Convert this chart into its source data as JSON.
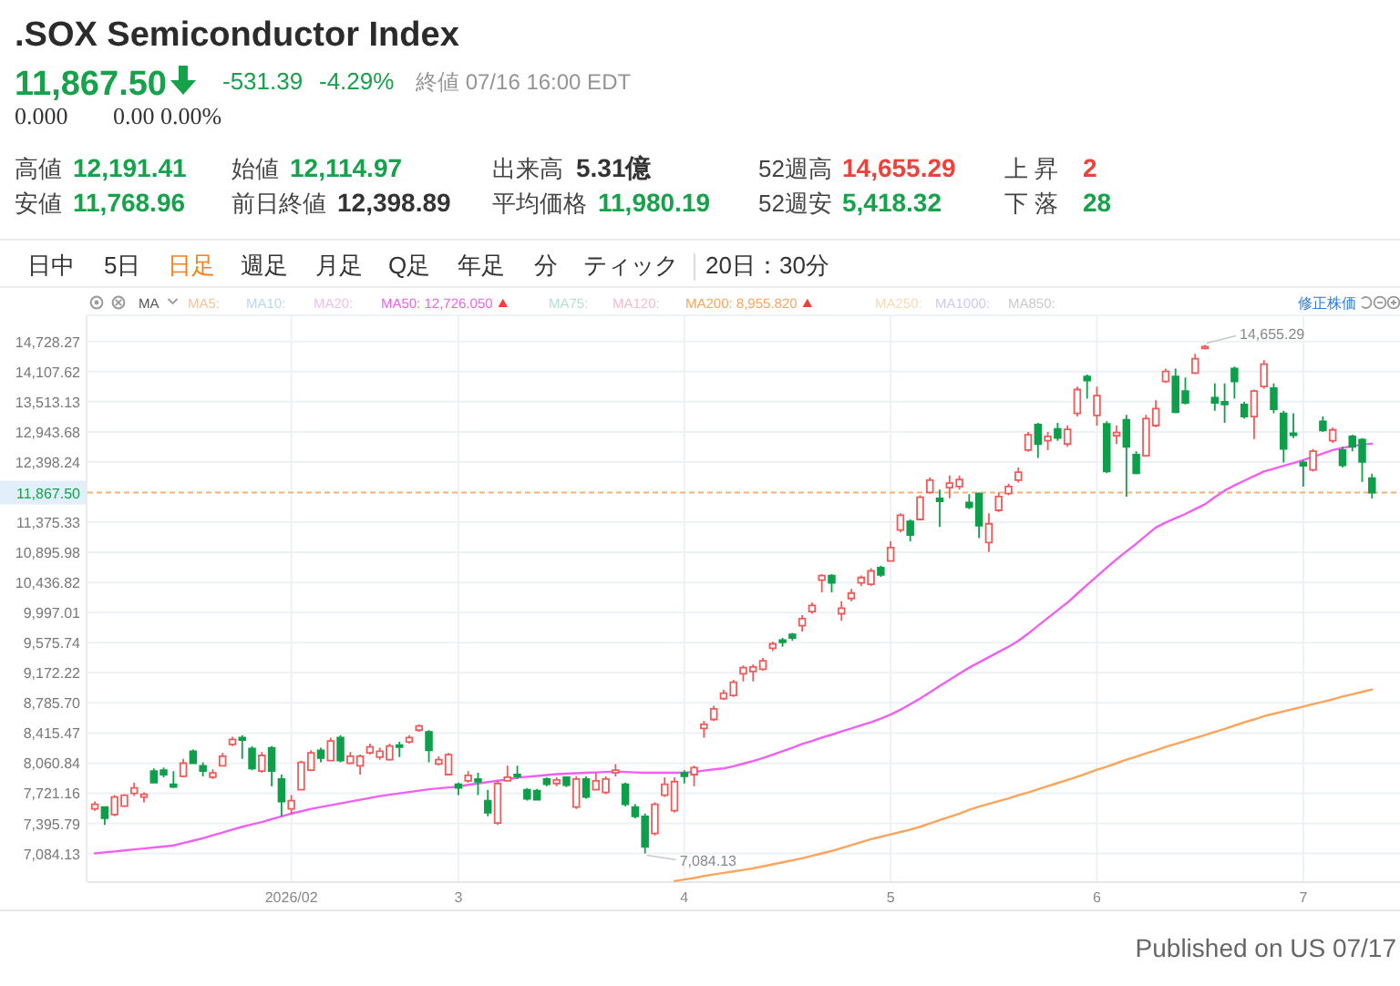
{
  "chart_data": {
    "type": "candlestick",
    "title": ".SOX Semiconductor Index",
    "subtitle": "11,867.50",
    "categories": [
      null,
      null,
      null,
      null,
      null,
      null,
      null,
      null,
      null,
      null,
      null,
      null,
      null,
      null,
      null,
      null,
      null,
      null,
      null,
      null,
      "2026/02",
      null,
      null,
      null,
      null,
      null,
      null,
      null,
      null,
      null,
      null,
      null,
      null,
      null,
      null,
      null,
      null,
      "3",
      null,
      null,
      null,
      null,
      null,
      null,
      null,
      null,
      null,
      null,
      null,
      null,
      null,
      null,
      null,
      null,
      null,
      null,
      null,
      null,
      null,
      null,
      "4",
      null,
      null,
      null,
      null,
      null,
      null,
      null,
      null,
      null,
      null,
      null,
      null,
      null,
      null,
      null,
      null,
      null,
      null,
      null,
      null,
      "5",
      null,
      null,
      null,
      null,
      null,
      null,
      null,
      null,
      null,
      null,
      null,
      null,
      null,
      null,
      null,
      null,
      null,
      null,
      null,
      null,
      "6",
      null,
      null,
      null,
      null,
      null,
      null,
      null,
      null,
      null,
      null,
      null,
      null,
      null,
      null,
      null,
      null,
      null,
      null,
      null,
      null,
      "7",
      null,
      null,
      null,
      null,
      null,
      null,
      null
    ],
    "series": [
      {
        "ohlc": [
          [
            7550,
            7630,
            7530,
            7600
          ],
          [
            7570,
            7580,
            7380,
            7450
          ],
          [
            7490,
            7700,
            7470,
            7680
          ],
          [
            7580,
            7710,
            7570,
            7700
          ],
          [
            7720,
            7840,
            7690,
            7780
          ],
          [
            7680,
            7730,
            7620,
            7710
          ],
          [
            7970,
            8000,
            7830,
            7840
          ],
          [
            7980,
            8010,
            7900,
            7930
          ],
          [
            7820,
            7970,
            7780,
            7790
          ],
          [
            7910,
            8110,
            7900,
            8060
          ],
          [
            8200,
            8220,
            8050,
            8060
          ],
          [
            8030,
            8070,
            7910,
            7970
          ],
          [
            7900,
            7990,
            7880,
            7950
          ],
          [
            8030,
            8180,
            8020,
            8140
          ],
          [
            8280,
            8370,
            8260,
            8340
          ],
          [
            8360,
            8390,
            8110,
            8330
          ],
          [
            8230,
            8260,
            7980,
            8000
          ],
          [
            7970,
            8190,
            7950,
            8150
          ],
          [
            8240,
            8260,
            7800,
            7970
          ],
          [
            7880,
            7930,
            7470,
            7630
          ],
          [
            7550,
            7700,
            7490,
            7640
          ],
          [
            7760,
            8090,
            7750,
            8070
          ],
          [
            7980,
            8210,
            7970,
            8180
          ],
          [
            8210,
            8240,
            8070,
            8120
          ],
          [
            8090,
            8360,
            8080,
            8320
          ],
          [
            8360,
            8390,
            8070,
            8090
          ],
          [
            8060,
            8190,
            8050,
            8140
          ],
          [
            8030,
            8160,
            7930,
            8140
          ],
          [
            8180,
            8290,
            8160,
            8250
          ],
          [
            8130,
            8240,
            8100,
            8200
          ],
          [
            8100,
            8290,
            8090,
            8260
          ],
          [
            8270,
            8310,
            8130,
            8250
          ],
          [
            8310,
            8390,
            8290,
            8360
          ],
          [
            8450,
            8520,
            8430,
            8500
          ],
          [
            8430,
            8450,
            8070,
            8210
          ],
          [
            8050,
            8140,
            8030,
            8100
          ],
          [
            7930,
            8180,
            7920,
            8160
          ],
          [
            7820,
            7840,
            7700,
            7780
          ],
          [
            7860,
            7970,
            7840,
            7920
          ],
          [
            7880,
            7950,
            7700,
            7850
          ],
          [
            7640,
            7760,
            7470,
            7510
          ],
          [
            7400,
            7860,
            7380,
            7830
          ],
          [
            7860,
            8030,
            7850,
            7900
          ],
          [
            7930,
            8030,
            7880,
            7910
          ],
          [
            7760,
            7780,
            7640,
            7660
          ],
          [
            7750,
            7770,
            7640,
            7650
          ],
          [
            7880,
            7900,
            7800,
            7820
          ],
          [
            7830,
            7900,
            7800,
            7870
          ],
          [
            7900,
            7910,
            7790,
            7810
          ],
          [
            7570,
            7910,
            7550,
            7880
          ],
          [
            7880,
            7910,
            7660,
            7680
          ],
          [
            7760,
            7950,
            7750,
            7860
          ],
          [
            7730,
            7910,
            7710,
            7880
          ],
          [
            7950,
            8050,
            7910,
            7980
          ],
          [
            7820,
            7840,
            7580,
            7600
          ],
          [
            7570,
            7600,
            7450,
            7470
          ],
          [
            7470,
            7500,
            7084.13,
            7150
          ],
          [
            7290,
            7620,
            7270,
            7600
          ],
          [
            7700,
            7900,
            7680,
            7820
          ],
          [
            7530,
            7900,
            7510,
            7850
          ],
          [
            7950,
            7980,
            7830,
            7910
          ],
          [
            7930,
            8030,
            7800,
            8010
          ],
          [
            8470,
            8560,
            8360,
            8520
          ],
          [
            8580,
            8750,
            8560,
            8710
          ],
          [
            8840,
            8950,
            8820,
            8910
          ],
          [
            8880,
            9080,
            8860,
            9050
          ],
          [
            9160,
            9270,
            9060,
            9240
          ],
          [
            9190,
            9280,
            9060,
            9250
          ],
          [
            9220,
            9370,
            9200,
            9330
          ],
          [
            9500,
            9590,
            9460,
            9560
          ],
          [
            9610,
            9640,
            9520,
            9580
          ],
          [
            9690,
            9710,
            9600,
            9640
          ],
          [
            9810,
            9960,
            9730,
            9910
          ],
          [
            10010,
            10140,
            9980,
            10100
          ],
          [
            10470,
            10560,
            10290,
            10540
          ],
          [
            10540,
            10560,
            10290,
            10430
          ],
          [
            9980,
            10160,
            9880,
            10060
          ],
          [
            10200,
            10340,
            10160,
            10280
          ],
          [
            10430,
            10540,
            10380,
            10510
          ],
          [
            10410,
            10650,
            10380,
            10610
          ],
          [
            10660,
            10690,
            10520,
            10550
          ],
          [
            10760,
            11070,
            10750,
            10970
          ],
          [
            11250,
            11520,
            11210,
            11490
          ],
          [
            11390,
            11420,
            11070,
            11170
          ],
          [
            11420,
            11820,
            11400,
            11790
          ],
          [
            11870,
            12130,
            11850,
            12080
          ],
          [
            11770,
            11920,
            11300,
            11720
          ],
          [
            11950,
            12160,
            11770,
            12030
          ],
          [
            11970,
            12160,
            11920,
            12090
          ],
          [
            11700,
            11840,
            11590,
            11620
          ],
          [
            11850,
            11870,
            11120,
            11320
          ],
          [
            11050,
            11520,
            10900,
            11350
          ],
          [
            11570,
            11870,
            11540,
            11800
          ],
          [
            11850,
            12020,
            11820,
            11970
          ],
          [
            12080,
            12300,
            12040,
            12220
          ],
          [
            12610,
            12940,
            12580,
            12890
          ],
          [
            13080,
            13110,
            12470,
            12720
          ],
          [
            12780,
            12940,
            12610,
            12860
          ],
          [
            13000,
            13110,
            12780,
            12830
          ],
          [
            12720,
            13060,
            12670,
            12990
          ],
          [
            13290,
            13810,
            13230,
            13750
          ],
          [
            14010,
            14050,
            13570,
            13930
          ],
          [
            13250,
            13810,
            13060,
            13630
          ],
          [
            13090,
            13140,
            12200,
            12230
          ],
          [
            12870,
            13060,
            12720,
            12930
          ],
          [
            13170,
            13260,
            11800,
            12670
          ],
          [
            12530,
            12590,
            12180,
            12200
          ],
          [
            12510,
            13260,
            12490,
            13190
          ],
          [
            13060,
            13540,
            13030,
            13380
          ],
          [
            13910,
            14170,
            13880,
            14110
          ],
          [
            14010,
            14170,
            13290,
            13310
          ],
          [
            13720,
            13990,
            13460,
            13490
          ],
          [
            14080,
            14470,
            14060,
            14370
          ],
          [
            14590,
            14655.29,
            14560,
            14620
          ],
          [
            13590,
            13870,
            13340,
            13490
          ],
          [
            13510,
            13870,
            13110,
            13460
          ],
          [
            14170,
            14210,
            13570,
            13910
          ],
          [
            13460,
            13510,
            13190,
            13230
          ],
          [
            13230,
            13750,
            12810,
            13720
          ],
          [
            13810,
            14340,
            13770,
            14260
          ],
          [
            13780,
            13870,
            13290,
            13370
          ],
          [
            13290,
            13340,
            12390,
            12630
          ],
          [
            12920,
            13290,
            12830,
            12880
          ],
          [
            12390,
            12430,
            11970,
            12330
          ],
          [
            12260,
            12630,
            12230,
            12590
          ],
          [
            13140,
            13230,
            12940,
            12970
          ],
          [
            12780,
            13020,
            12740,
            12980
          ],
          [
            12610,
            12670,
            12300,
            12340
          ],
          [
            12860,
            12890,
            12590,
            12670
          ],
          [
            12800,
            12830,
            12050,
            12398.89
          ],
          [
            12114.97,
            12191.41,
            11768.96,
            11867.5
          ]
        ],
        "colors": [
          "#f25a5a",
          "#0e9f4a",
          "#f25a5a",
          "#f25a5a",
          "#f25a5a",
          "#f25a5a",
          "#0e9f4a",
          "#0e9f4a",
          "#0e9f4a",
          "#f25a5a",
          "#0e9f4a",
          "#0e9f4a",
          "#f25a5a",
          "#f25a5a",
          "#f25a5a",
          "#0e9f4a",
          "#0e9f4a",
          "#f25a5a",
          "#0e9f4a",
          "#0e9f4a",
          "#f25a5a",
          "#f25a5a",
          "#f25a5a",
          "#0e9f4a",
          "#f25a5a",
          "#0e9f4a",
          "#f25a5a",
          "#f25a5a",
          "#f25a5a",
          "#f25a5a",
          "#f25a5a",
          "#0e9f4a",
          "#f25a5a",
          "#f25a5a",
          "#0e9f4a",
          "#f25a5a",
          "#f25a5a",
          "#0e9f4a",
          "#f25a5a",
          "#0e9f4a",
          "#0e9f4a",
          "#f25a5a",
          "#f25a5a",
          "#0e9f4a",
          "#0e9f4a",
          "#0e9f4a",
          "#0e9f4a",
          "#f25a5a",
          "#0e9f4a",
          "#f25a5a",
          "#0e9f4a",
          "#f25a5a",
          "#f25a5a",
          "#f25a5a",
          "#0e9f4a",
          "#0e9f4a",
          "#0e9f4a",
          "#f25a5a",
          "#f25a5a",
          "#f25a5a",
          "#0e9f4a",
          "#f25a5a",
          "#f25a5a",
          "#f25a5a",
          "#f25a5a",
          "#f25a5a",
          "#f25a5a",
          "#f25a5a",
          "#f25a5a",
          "#f25a5a",
          "#0e9f4a",
          "#0e9f4a",
          "#f25a5a",
          "#f25a5a",
          "#f25a5a",
          "#0e9f4a",
          "#f25a5a",
          "#f25a5a",
          "#f25a5a",
          "#f25a5a",
          "#0e9f4a",
          "#f25a5a",
          "#f25a5a",
          "#0e9f4a",
          "#f25a5a",
          "#f25a5a",
          "#0e9f4a",
          "#f25a5a",
          "#f25a5a",
          "#0e9f4a",
          "#0e9f4a",
          "#f25a5a",
          "#f25a5a",
          "#f25a5a",
          "#f25a5a",
          "#f25a5a",
          "#0e9f4a",
          "#f25a5a",
          "#0e9f4a",
          "#f25a5a",
          "#f25a5a",
          "#0e9f4a",
          "#f25a5a",
          "#0e9f4a",
          "#f25a5a",
          "#0e9f4a",
          "#0e9f4a",
          "#f25a5a",
          "#f25a5a",
          "#f25a5a",
          "#0e9f4a",
          "#0e9f4a",
          "#f25a5a",
          "#f25a5a",
          "#0e9f4a",
          "#0e9f4a",
          "#0e9f4a",
          "#0e9f4a",
          "#f25a5a",
          "#f25a5a",
          "#0e9f4a",
          "#0e9f4a",
          "#0e9f4a",
          "#0e9f4a",
          "#f25a5a",
          "#0e9f4a",
          "#f25a5a",
          "#0e9f4a",
          "#0e9f4a",
          "#0e9f4a",
          "#0e9f4a"
        ]
      },
      {
        "type": "line",
        "name": "MA50: 12,726.050",
        "color": "#f060f0",
        "values": [
          7085,
          7095,
          7105,
          7115,
          7125,
          7135,
          7145,
          7155,
          7166,
          7190,
          7215,
          7240,
          7270,
          7300,
          7330,
          7360,
          7385,
          7410,
          7440,
          7470,
          7500,
          7525,
          7550,
          7570,
          7590,
          7610,
          7630,
          7650,
          7670,
          7690,
          7705,
          7720,
          7735,
          7750,
          7765,
          7775,
          7785,
          7796,
          7815,
          7830,
          7845,
          7860,
          7875,
          7895,
          7905,
          7915,
          7925,
          7935,
          7940,
          7945,
          7950,
          7955,
          7960,
          7965,
          7960,
          7955,
          7950,
          7950,
          7950,
          7950,
          7950,
          7960,
          7975,
          7990,
          8000,
          8025,
          8055,
          8085,
          8120,
          8160,
          8200,
          8240,
          8285,
          8320,
          8360,
          8395,
          8435,
          8470,
          8510,
          8545,
          8590,
          8640,
          8700,
          8770,
          8840,
          8920,
          9000,
          9080,
          9160,
          9240,
          9310,
          9380,
          9450,
          9520,
          9600,
          9700,
          9810,
          9920,
          10030,
          10140,
          10270,
          10400,
          10530,
          10660,
          10790,
          10910,
          11030,
          11160,
          11290,
          11370,
          11440,
          11510,
          11590,
          11670,
          11790,
          11900,
          11990,
          12070,
          12150,
          12230,
          12280,
          12330,
          12380,
          12430,
          12490,
          12550,
          12610,
          12650,
          12680,
          12710,
          12726.05
        ]
      },
      {
        "type": "line",
        "name": "MA200: 8,955.820",
        "color": "#fba45c",
        "values": [
          null,
          null,
          null,
          null,
          null,
          null,
          null,
          null,
          null,
          null,
          null,
          null,
          null,
          null,
          null,
          null,
          null,
          null,
          null,
          null,
          null,
          null,
          null,
          null,
          null,
          null,
          null,
          null,
          null,
          null,
          null,
          null,
          null,
          null,
          null,
          null,
          null,
          null,
          null,
          null,
          null,
          null,
          null,
          null,
          null,
          null,
          null,
          null,
          null,
          null,
          null,
          null,
          null,
          null,
          null,
          null,
          null,
          null,
          null,
          6810,
          6825,
          6840,
          6860,
          6875,
          6890,
          6905,
          6920,
          6935,
          6955,
          6975,
          6995,
          7015,
          7035,
          7060,
          7085,
          7110,
          7140,
          7170,
          7200,
          7230,
          7255,
          7280,
          7305,
          7330,
          7360,
          7395,
          7430,
          7465,
          7500,
          7540,
          7575,
          7605,
          7635,
          7665,
          7700,
          7730,
          7765,
          7800,
          7835,
          7870,
          7905,
          7945,
          7985,
          8020,
          8060,
          8100,
          8135,
          8175,
          8210,
          8250,
          8285,
          8320,
          8355,
          8390,
          8430,
          8465,
          8505,
          8545,
          8580,
          8620,
          8650,
          8680,
          8710,
          8740,
          8770,
          8800,
          8830,
          8865,
          8895,
          8925,
          8955.82
        ]
      }
    ],
    "ylim": [
      6800,
      15290
    ],
    "yticks": [
      {
        "value": 14728.27,
        "label": "14,728.27"
      },
      {
        "value": 14107.62,
        "label": "14,107.62"
      },
      {
        "value": 13513.13,
        "label": "13,513.13"
      },
      {
        "value": 12943.68,
        "label": "12,943.68"
      },
      {
        "value": 12398.24,
        "label": "12,398.24"
      },
      {
        "value": 11375.33,
        "label": "11,375.33"
      },
      {
        "value": 10895.98,
        "label": "10,895.98"
      },
      {
        "value": 10436.82,
        "label": "10,436.82"
      },
      {
        "value": 9997.01,
        "label": "9,997.01"
      },
      {
        "value": 9575.74,
        "label": "9,575.74"
      },
      {
        "value": 9172.22,
        "label": "9,172.22"
      },
      {
        "value": 8785.7,
        "label": "8,785.70"
      },
      {
        "value": 8415.47,
        "label": "8,415.47"
      },
      {
        "value": 8060.84,
        "label": "8,060.84"
      },
      {
        "value": 7721.16,
        "label": "7,721.16"
      },
      {
        "value": 7395.79,
        "label": "7,395.79"
      },
      {
        "value": 7084.13,
        "label": "7,084.13"
      }
    ],
    "log": true,
    "grid": true,
    "legend": "top",
    "ref_lines": [
      {
        "axis": "y",
        "value": 11867.5,
        "label": "11,867.50",
        "color": "#f7b27a",
        "line_style": "dashed"
      }
    ],
    "annotations": [
      "-531.39",
      "-4.29%",
      "終値 07/16 16:00 EDT",
      "0.000",
      "0.00 0.00%",
      "高値",
      "12,191.41",
      "始値",
      "12,114.97",
      "出来高",
      "5.31億",
      "52週高",
      "14,655.29",
      "上 昇",
      "2",
      "安値",
      "11,768.96",
      "前日終値",
      "12,398.89",
      "平均価格",
      "11,980.19",
      "52週安",
      "5,418.32",
      "下 落",
      "28",
      "日中",
      "5日",
      "日足",
      "週足",
      "月足",
      "Q足",
      "年足",
      "分",
      "ティック",
      "20日：30分",
      "MA",
      "MA5:",
      "MA10:",
      "MA20:",
      "MA75:",
      "MA120:",
      "MA250:",
      "MA1000:",
      "MA850:",
      "修正株価",
      "14,655.29",
      "7,084.13",
      "Published on US 07/17"
    ]
  }
}
